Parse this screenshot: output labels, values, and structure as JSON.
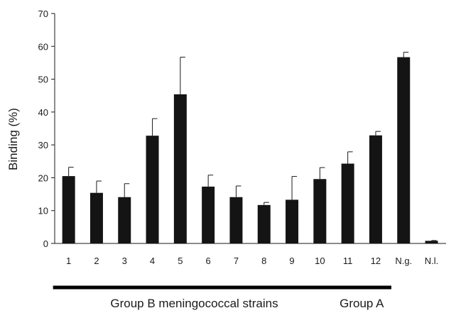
{
  "chart_data": {
    "type": "bar",
    "ylabel": "Binding (%)",
    "xlabel": "",
    "ylim": [
      0,
      70
    ],
    "yticks": [
      0,
      10,
      20,
      30,
      40,
      50,
      60,
      70
    ],
    "grid": false,
    "categories": [
      "1",
      "2",
      "3",
      "4",
      "5",
      "6",
      "7",
      "8",
      "9",
      "10",
      "11",
      "12",
      "N.g.",
      "N.l."
    ],
    "values": [
      20.5,
      15.4,
      14.1,
      32.8,
      45.4,
      17.3,
      14.1,
      11.7,
      13.3,
      19.6,
      24.3,
      32.9,
      56.7,
      0.8
    ],
    "error_upper": [
      2.7,
      3.6,
      4.1,
      5.2,
      11.3,
      3.5,
      3.4,
      0.8,
      7.1,
      3.5,
      3.6,
      1.2,
      1.5,
      0.1
    ],
    "groups": [
      {
        "label": "Group B meningococcal strains",
        "from": "1",
        "to": "10"
      },
      {
        "label": "Group A",
        "from": "11",
        "to": "12"
      }
    ],
    "colors": {
      "bar": "#141414",
      "axis": "#1a1a1a"
    }
  }
}
